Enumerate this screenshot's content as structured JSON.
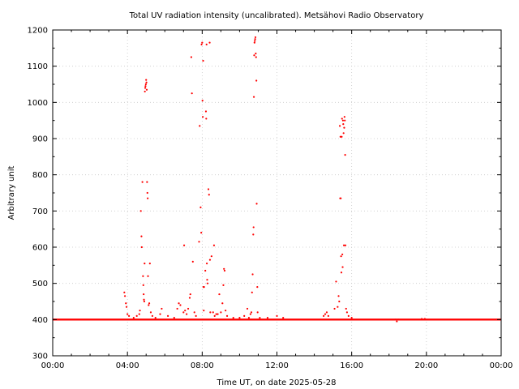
{
  "chart_data": {
    "type": "scatter",
    "title": "Total UV radiation intensity (uncalibrated). Metsähovi Radio Observatory",
    "xlabel": "Time UT, on date 2025-05-28",
    "ylabel": "Arbitrary unit",
    "xlim": [
      "00:00",
      "24:00"
    ],
    "ylim": [
      300,
      1200
    ],
    "x_ticks": [
      "00:00",
      "04:00",
      "08:00",
      "12:00",
      "16:00",
      "20:00",
      "00:00"
    ],
    "y_ticks": [
      300,
      400,
      500,
      600,
      700,
      800,
      900,
      1000,
      1100,
      1200
    ],
    "grid": true,
    "marker_color": "#ff0000",
    "baseline": {
      "value": 400,
      "from": "00:00",
      "to": "24:00"
    },
    "points": [
      {
        "x": "03:50",
        "y": 475
      },
      {
        "x": "03:52",
        "y": 465
      },
      {
        "x": "03:55",
        "y": 445
      },
      {
        "x": "03:57",
        "y": 435
      },
      {
        "x": "04:00",
        "y": 415
      },
      {
        "x": "04:05",
        "y": 410
      },
      {
        "x": "04:20",
        "y": 405
      },
      {
        "x": "04:30",
        "y": 410
      },
      {
        "x": "04:38",
        "y": 415
      },
      {
        "x": "04:40",
        "y": 425
      },
      {
        "x": "04:43",
        "y": 700
      },
      {
        "x": "04:45",
        "y": 630
      },
      {
        "x": "04:46",
        "y": 600
      },
      {
        "x": "04:48",
        "y": 780
      },
      {
        "x": "04:50",
        "y": 520
      },
      {
        "x": "04:51",
        "y": 495
      },
      {
        "x": "04:52",
        "y": 470
      },
      {
        "x": "04:53",
        "y": 455
      },
      {
        "x": "04:54",
        "y": 450
      },
      {
        "x": "04:55",
        "y": 555
      },
      {
        "x": "04:56",
        "y": 1030
      },
      {
        "x": "04:57",
        "y": 1040
      },
      {
        "x": "04:58",
        "y": 1045
      },
      {
        "x": "04:59",
        "y": 1050
      },
      {
        "x": "05:00",
        "y": 1062
      },
      {
        "x": "05:01",
        "y": 1055
      },
      {
        "x": "05:02",
        "y": 1035
      },
      {
        "x": "05:03",
        "y": 780
      },
      {
        "x": "05:04",
        "y": 750
      },
      {
        "x": "05:05",
        "y": 735
      },
      {
        "x": "05:06",
        "y": 520
      },
      {
        "x": "05:08",
        "y": 440
      },
      {
        "x": "05:10",
        "y": 445
      },
      {
        "x": "05:12",
        "y": 555
      },
      {
        "x": "05:15",
        "y": 420
      },
      {
        "x": "05:20",
        "y": 410
      },
      {
        "x": "05:30",
        "y": 405
      },
      {
        "x": "05:45",
        "y": 415
      },
      {
        "x": "05:50",
        "y": 430
      },
      {
        "x": "06:10",
        "y": 410
      },
      {
        "x": "06:30",
        "y": 405
      },
      {
        "x": "06:40",
        "y": 430
      },
      {
        "x": "06:45",
        "y": 445
      },
      {
        "x": "06:50",
        "y": 440
      },
      {
        "x": "07:00",
        "y": 420
      },
      {
        "x": "07:02",
        "y": 605
      },
      {
        "x": "07:05",
        "y": 425
      },
      {
        "x": "07:10",
        "y": 415
      },
      {
        "x": "07:15",
        "y": 430
      },
      {
        "x": "07:20",
        "y": 460
      },
      {
        "x": "07:22",
        "y": 470
      },
      {
        "x": "07:25",
        "y": 1125
      },
      {
        "x": "07:27",
        "y": 1025
      },
      {
        "x": "07:30",
        "y": 560
      },
      {
        "x": "07:35",
        "y": 420
      },
      {
        "x": "07:40",
        "y": 410
      },
      {
        "x": "07:50",
        "y": 615
      },
      {
        "x": "07:52",
        "y": 935
      },
      {
        "x": "07:55",
        "y": 710
      },
      {
        "x": "07:57",
        "y": 640
      },
      {
        "x": "07:58",
        "y": 1160
      },
      {
        "x": "08:00",
        "y": 1165
      },
      {
        "x": "08:01",
        "y": 1005
      },
      {
        "x": "08:02",
        "y": 960
      },
      {
        "x": "08:03",
        "y": 1115
      },
      {
        "x": "08:04",
        "y": 490
      },
      {
        "x": "08:05",
        "y": 425
      },
      {
        "x": "08:06",
        "y": 490
      },
      {
        "x": "08:10",
        "y": 535
      },
      {
        "x": "08:12",
        "y": 975
      },
      {
        "x": "08:13",
        "y": 955
      },
      {
        "x": "08:14",
        "y": 1160
      },
      {
        "x": "08:15",
        "y": 555
      },
      {
        "x": "08:16",
        "y": 510
      },
      {
        "x": "08:17",
        "y": 500
      },
      {
        "x": "08:20",
        "y": 760
      },
      {
        "x": "08:22",
        "y": 745
      },
      {
        "x": "08:24",
        "y": 1165
      },
      {
        "x": "08:25",
        "y": 565
      },
      {
        "x": "08:26",
        "y": 420
      },
      {
        "x": "08:30",
        "y": 575
      },
      {
        "x": "08:35",
        "y": 420
      },
      {
        "x": "08:38",
        "y": 605
      },
      {
        "x": "08:40",
        "y": 410
      },
      {
        "x": "08:45",
        "y": 415
      },
      {
        "x": "08:50",
        "y": 415
      },
      {
        "x": "08:55",
        "y": 470
      },
      {
        "x": "09:00",
        "y": 420
      },
      {
        "x": "09:05",
        "y": 445
      },
      {
        "x": "09:08",
        "y": 495
      },
      {
        "x": "09:10",
        "y": 540
      },
      {
        "x": "09:12",
        "y": 535
      },
      {
        "x": "09:15",
        "y": 425
      },
      {
        "x": "09:20",
        "y": 410
      },
      {
        "x": "09:40",
        "y": 405
      },
      {
        "x": "10:00",
        "y": 405
      },
      {
        "x": "10:15",
        "y": 410
      },
      {
        "x": "10:25",
        "y": 430
      },
      {
        "x": "10:30",
        "y": 405
      },
      {
        "x": "10:35",
        "y": 415
      },
      {
        "x": "10:38",
        "y": 420
      },
      {
        "x": "10:40",
        "y": 475
      },
      {
        "x": "10:42",
        "y": 525
      },
      {
        "x": "10:44",
        "y": 635
      },
      {
        "x": "10:45",
        "y": 655
      },
      {
        "x": "10:46",
        "y": 1015
      },
      {
        "x": "10:47",
        "y": 1130
      },
      {
        "x": "10:48",
        "y": 1165
      },
      {
        "x": "10:49",
        "y": 1170
      },
      {
        "x": "10:50",
        "y": 1175
      },
      {
        "x": "10:51",
        "y": 1180
      },
      {
        "x": "10:52",
        "y": 1135
      },
      {
        "x": "10:53",
        "y": 1125
      },
      {
        "x": "10:54",
        "y": 1060
      },
      {
        "x": "10:55",
        "y": 720
      },
      {
        "x": "10:57",
        "y": 490
      },
      {
        "x": "10:58",
        "y": 420
      },
      {
        "x": "11:05",
        "y": 405
      },
      {
        "x": "11:30",
        "y": 405
      },
      {
        "x": "12:00",
        "y": 410
      },
      {
        "x": "12:20",
        "y": 405
      },
      {
        "x": "14:30",
        "y": 410
      },
      {
        "x": "14:35",
        "y": 415
      },
      {
        "x": "14:40",
        "y": 420
      },
      {
        "x": "14:45",
        "y": 410
      },
      {
        "x": "15:05",
        "y": 430
      },
      {
        "x": "15:10",
        "y": 505
      },
      {
        "x": "15:15",
        "y": 435
      },
      {
        "x": "15:18",
        "y": 465
      },
      {
        "x": "15:20",
        "y": 450
      },
      {
        "x": "15:22",
        "y": 935
      },
      {
        "x": "15:23",
        "y": 735
      },
      {
        "x": "15:24",
        "y": 905
      },
      {
        "x": "15:25",
        "y": 735
      },
      {
        "x": "15:26",
        "y": 575
      },
      {
        "x": "15:27",
        "y": 530
      },
      {
        "x": "15:28",
        "y": 905
      },
      {
        "x": "15:29",
        "y": 955
      },
      {
        "x": "15:30",
        "y": 580
      },
      {
        "x": "15:31",
        "y": 545
      },
      {
        "x": "15:32",
        "y": 950
      },
      {
        "x": "15:33",
        "y": 940
      },
      {
        "x": "15:34",
        "y": 915
      },
      {
        "x": "15:35",
        "y": 605
      },
      {
        "x": "15:36",
        "y": 930
      },
      {
        "x": "15:37",
        "y": 960
      },
      {
        "x": "15:38",
        "y": 950
      },
      {
        "x": "15:39",
        "y": 855
      },
      {
        "x": "15:40",
        "y": 605
      },
      {
        "x": "15:42",
        "y": 430
      },
      {
        "x": "15:45",
        "y": 420
      },
      {
        "x": "15:50",
        "y": 410
      },
      {
        "x": "16:00",
        "y": 405
      },
      {
        "x": "18:20",
        "y": 400
      },
      {
        "x": "18:25",
        "y": 395
      },
      {
        "x": "18:30",
        "y": 400
      },
      {
        "x": "19:45",
        "y": 402
      },
      {
        "x": "19:55",
        "y": 402
      }
    ]
  }
}
